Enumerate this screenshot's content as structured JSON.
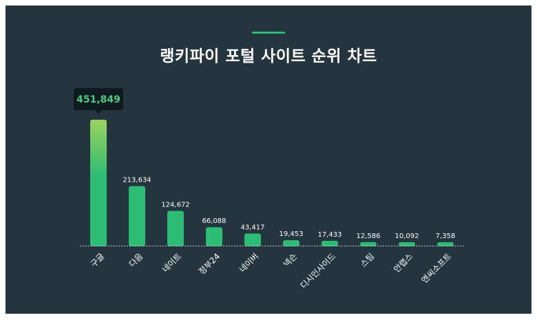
{
  "title": "랭키파이 포털 사이트 순위 차트",
  "colors": {
    "background": "#253540",
    "bar": "#2bbd72",
    "bar_top_highlight": "#9bd35f",
    "accent": "#2bbd72",
    "tooltip_bg": "#0f1a20",
    "tooltip_text": "#3ecf80"
  },
  "highlight": {
    "index": 0,
    "label": "451,849"
  },
  "chart_data": {
    "type": "bar",
    "categories": [
      "구글",
      "다음",
      "네이트",
      "정부24",
      "네이버",
      "넥슨",
      "디시인사이드",
      "스팀",
      "안랩스",
      "엔씨소프트"
    ],
    "values": [
      451849,
      213634,
      124672,
      66088,
      43417,
      19453,
      17433,
      12586,
      10092,
      7358
    ],
    "value_labels": [
      "451,849",
      "213,634",
      "124,672",
      "66,088",
      "43,417",
      "19,453",
      "17,433",
      "12,586",
      "10,092",
      "7,358"
    ],
    "title": "랭키파이 포털 사이트 순위 차트",
    "xlabel": "",
    "ylabel": "",
    "ylim": [
      0,
      451849
    ],
    "grid": false,
    "legend": "none"
  }
}
